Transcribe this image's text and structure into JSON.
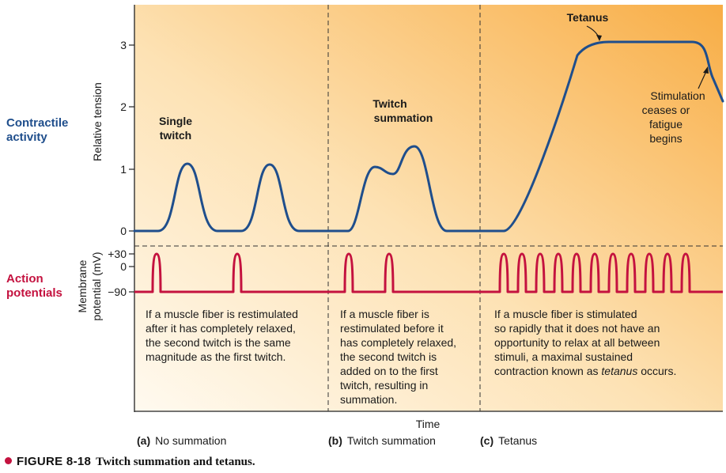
{
  "side_labels": {
    "contractile": [
      "Contractile",
      "activity"
    ],
    "action": [
      "Action",
      "potentials"
    ]
  },
  "axes": {
    "tension_label": "Relative tension",
    "tension_ticks": [
      "0",
      "1",
      "2",
      "3"
    ],
    "membrane_label": [
      "Membrane",
      "potential (mV)"
    ],
    "membrane_ticks": [
      "+30",
      "0",
      "−90"
    ],
    "time_label": "Time"
  },
  "annotations": {
    "single_twitch": [
      "Single",
      "twitch"
    ],
    "twitch_summation": [
      "Twitch",
      "summation"
    ],
    "tetanus": "Tetanus",
    "stimulation": [
      "Stimulation",
      "ceases or",
      "fatigue",
      "begins"
    ]
  },
  "panels": [
    {
      "tag": "(a)",
      "title": "No summation",
      "text": [
        "If a muscle fiber is restimulated",
        "after it has completely relaxed,",
        "the second twitch is the same",
        "magnitude as the first twitch."
      ]
    },
    {
      "tag": "(b)",
      "title": "Twitch summation",
      "text": [
        "If a muscle fiber is",
        "restimulated before it",
        "has completely relaxed,",
        "the second twitch is",
        "added on to the first",
        "twitch, resulting in",
        "summation."
      ]
    },
    {
      "tag": "(c)",
      "title": "Tetanus",
      "text_plain": [
        "If a muscle fiber is stimulated",
        "so rapidly that it does not have an",
        "opportunity to relax at all between",
        "stimuli, a maximal sustained"
      ],
      "text_last_before": "contraction known as ",
      "text_last_italic": "tetanus",
      "text_last_after": " occurs."
    }
  ],
  "figure_caption": {
    "label": "FIGURE 8-18",
    "title": "Twitch summation and tetanus."
  },
  "colors": {
    "tension_curve": "#1f4e8c",
    "action_potential": "#c4123f",
    "contractile_label": "#1f4e8c",
    "action_label": "#c4123f",
    "background_light": "#fdf3dc",
    "background_dark": "#f9b04a"
  }
}
